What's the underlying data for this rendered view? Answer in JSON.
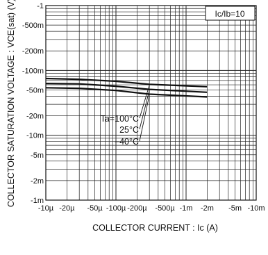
{
  "chart_data": {
    "type": "line",
    "legend_note": "Ic/Ib=10",
    "xlabel": "COLLECTOR CURRENT : Ic (A)",
    "ylabel": "COLLECTOR SATURATION VOLTAGE : VCE(sat) (V)",
    "x_scale": "log",
    "y_scale": "log",
    "x_direction": "reversed",
    "y_direction": "reversed",
    "xlim": [
      -1e-05,
      -0.01
    ],
    "ylim": [
      -0.001,
      -1
    ],
    "x_tick_labels": [
      "-10µ",
      "-20µ",
      "-50µ",
      "-100µ",
      "-200µ",
      "-500µ",
      "-1m",
      "-2m",
      "-5m",
      "-10m"
    ],
    "x_tick_values": [
      -1e-05,
      -2e-05,
      -5e-05,
      -0.0001,
      -0.0002,
      -0.0005,
      -0.001,
      -0.002,
      -0.005,
      -0.01
    ],
    "y_tick_labels": [
      "-1",
      "-500m",
      "-200m",
      "-100m",
      "-50m",
      "-20m",
      "-10m",
      "-5m",
      "-2m",
      "-1m"
    ],
    "y_tick_values": [
      -1,
      -0.5,
      -0.2,
      -0.1,
      -0.05,
      -0.02,
      -0.01,
      -0.005,
      -0.002,
      -0.001
    ],
    "grid": true,
    "series": [
      {
        "name": "Ta=100°C",
        "x": [
          -1e-05,
          -3e-05,
          -0.0001,
          -0.0003,
          -0.002
        ],
        "y": [
          -0.075,
          -0.073,
          -0.068,
          -0.061,
          -0.056
        ]
      },
      {
        "name": "25°C",
        "x": [
          -1e-05,
          -3e-05,
          -0.0001,
          -0.0003,
          -0.002
        ],
        "y": [
          -0.063,
          -0.062,
          -0.057,
          -0.051,
          -0.046
        ]
      },
      {
        "name": "−40°C",
        "x": [
          -1e-05,
          -3e-05,
          -0.0001,
          -0.0003,
          -0.002
        ],
        "y": [
          -0.054,
          -0.053,
          -0.049,
          -0.043,
          -0.039
        ]
      }
    ]
  }
}
